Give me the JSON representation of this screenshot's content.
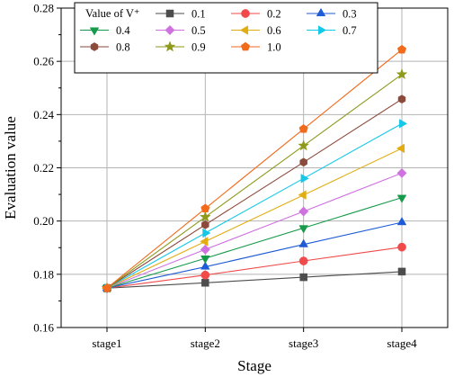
{
  "chart_data": {
    "type": "line",
    "xlabel": "Stage",
    "ylabel": "Evaluation value",
    "categories": [
      "stage1",
      "stage2",
      "stage3",
      "stage4"
    ],
    "ylim": [
      0.16,
      0.28
    ],
    "yticks": [
      "0.16",
      "0.18",
      "0.20",
      "0.22",
      "0.24",
      "0.26",
      "0.28"
    ],
    "grid": true,
    "legend": {
      "title": "Value of V⁺",
      "placement": "top-left",
      "columns": 4
    },
    "series": [
      {
        "name": "0.1",
        "color": "#4d4d4d",
        "marker": "square",
        "values": [
          0.1748,
          0.1768,
          0.1789,
          0.181
        ]
      },
      {
        "name": "0.2",
        "color": "#f14a4a",
        "marker": "circle",
        "values": [
          0.1748,
          0.1797,
          0.185,
          0.1902
        ]
      },
      {
        "name": "0.3",
        "color": "#1f5bd6",
        "marker": "triangle-up",
        "values": [
          0.1748,
          0.1828,
          0.1912,
          0.1995
        ]
      },
      {
        "name": "0.4",
        "color": "#179a4a",
        "marker": "triangle-down",
        "values": [
          0.1748,
          0.186,
          0.1974,
          0.2088
        ]
      },
      {
        "name": "0.5",
        "color": "#cf72e0",
        "marker": "diamond",
        "values": [
          0.1748,
          0.1893,
          0.2036,
          0.218
        ]
      },
      {
        "name": "0.6",
        "color": "#e2ad12",
        "marker": "triangle-left",
        "values": [
          0.1748,
          0.1923,
          0.2098,
          0.2273
        ]
      },
      {
        "name": "0.7",
        "color": "#16c8e8",
        "marker": "triangle-right",
        "values": [
          0.1748,
          0.1955,
          0.216,
          0.2366
        ]
      },
      {
        "name": "0.8",
        "color": "#8c4a3c",
        "marker": "hexagon",
        "values": [
          0.1748,
          0.1986,
          0.2221,
          0.2458
        ]
      },
      {
        "name": "0.9",
        "color": "#8f9a1c",
        "marker": "star",
        "values": [
          0.1748,
          0.2015,
          0.2283,
          0.2551
        ]
      },
      {
        "name": "1.0",
        "color": "#f26a1b",
        "marker": "pentagon",
        "values": [
          0.1748,
          0.2047,
          0.2346,
          0.2644
        ]
      }
    ]
  }
}
